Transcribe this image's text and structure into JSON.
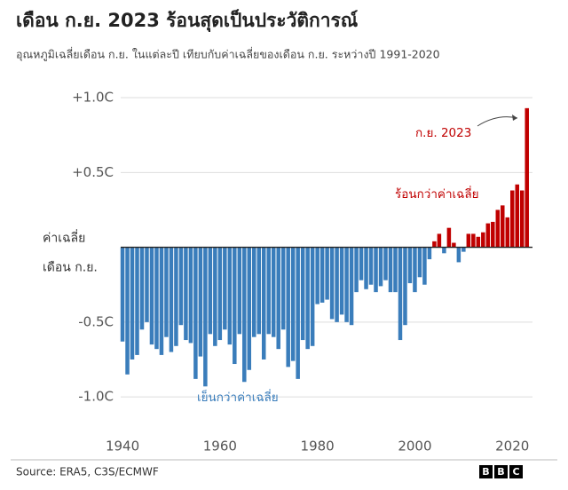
{
  "chart_data": {
    "type": "bar",
    "title": "เดือน ก.ย. 2023 ร้อนสุดเป็นประวัติการณ์",
    "subtitle": "อุณหภูมิเฉลี่ยเดือน ก.ย. ในแต่ละปี เทียบกับค่าเฉลี่ยของเดือน ก.ย. ระหว่างปี 1991-2020",
    "x": [
      1940,
      1941,
      1942,
      1943,
      1944,
      1945,
      1946,
      1947,
      1948,
      1949,
      1950,
      1951,
      1952,
      1953,
      1954,
      1955,
      1956,
      1957,
      1958,
      1959,
      1960,
      1961,
      1962,
      1963,
      1964,
      1965,
      1966,
      1967,
      1968,
      1969,
      1970,
      1971,
      1972,
      1973,
      1974,
      1975,
      1976,
      1977,
      1978,
      1979,
      1980,
      1981,
      1982,
      1983,
      1984,
      1985,
      1986,
      1987,
      1988,
      1989,
      1990,
      1991,
      1992,
      1993,
      1994,
      1995,
      1996,
      1997,
      1998,
      1999,
      2000,
      2001,
      2002,
      2003,
      2004,
      2005,
      2006,
      2007,
      2008,
      2009,
      2010,
      2011,
      2012,
      2013,
      2014,
      2015,
      2016,
      2017,
      2018,
      2019,
      2020,
      2021,
      2022,
      2023
    ],
    "values": [
      -0.63,
      -0.85,
      -0.75,
      -0.72,
      -0.55,
      -0.5,
      -0.65,
      -0.68,
      -0.72,
      -0.6,
      -0.7,
      -0.66,
      -0.52,
      -0.62,
      -0.64,
      -0.88,
      -0.73,
      -0.93,
      -0.58,
      -0.66,
      -0.62,
      -0.55,
      -0.65,
      -0.78,
      -0.58,
      -0.9,
      -0.82,
      -0.6,
      -0.58,
      -0.75,
      -0.58,
      -0.6,
      -0.68,
      -0.55,
      -0.8,
      -0.76,
      -0.88,
      -0.62,
      -0.68,
      -0.66,
      -0.38,
      -0.37,
      -0.35,
      -0.48,
      -0.5,
      -0.45,
      -0.5,
      -0.52,
      -0.3,
      -0.22,
      -0.28,
      -0.25,
      -0.3,
      -0.26,
      -0.22,
      -0.3,
      -0.3,
      -0.62,
      -0.52,
      -0.24,
      -0.3,
      -0.2,
      -0.25,
      -0.08,
      0.04,
      0.09,
      -0.04,
      0.13,
      0.03,
      -0.1,
      -0.03,
      0.09,
      0.09,
      0.07,
      0.1,
      0.16,
      0.17,
      0.25,
      0.28,
      0.2,
      0.38,
      0.42,
      0.38,
      0.93
    ],
    "positive_color": "#c00000",
    "negative_color": "#3a7dbb",
    "xlim": [
      1933,
      2025
    ],
    "xticks": [
      1940,
      1960,
      1980,
      2000,
      2020
    ],
    "ylim": [
      -1.2,
      1.1
    ],
    "yticks": [
      {
        "value": 1,
        "label": "+1.0C"
      },
      {
        "value": 0.5,
        "label": "+0.5C"
      },
      {
        "value": -0.5,
        "label": "-0.5C"
      },
      {
        "value": -1,
        "label": "-1.0C"
      }
    ],
    "grid": true,
    "zero_label": [
      "ค่าเฉลี่ย",
      "เดือน ก.ย."
    ],
    "annotations": {
      "record": "ก.ย. 2023",
      "warmer": "ร้อนกว่าค่าเฉลี่ย",
      "cooler": "เย็นกว่าค่าเฉลี่ย"
    },
    "source": "Source: ERA5, C3S/ECMWF",
    "logo": [
      "B",
      "B",
      "C"
    ]
  }
}
